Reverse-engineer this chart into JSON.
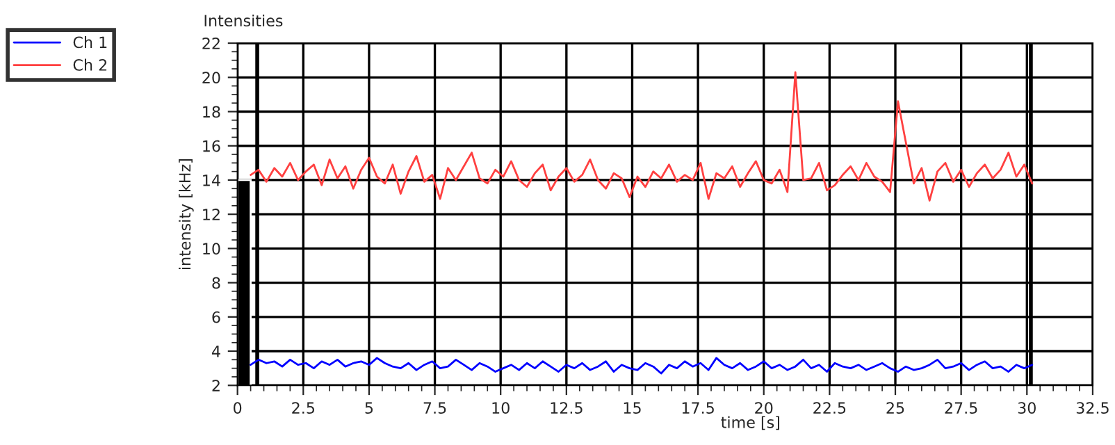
{
  "chart_data": {
    "type": "line",
    "title": "Intensities",
    "xlabel": "time [s]",
    "ylabel": "intensity [kHz]",
    "x": [
      0.5,
      0.8,
      1.1,
      1.4,
      1.7,
      2.0,
      2.3,
      2.6,
      2.9,
      3.2,
      3.5,
      3.8,
      4.1,
      4.4,
      4.7,
      5.0,
      5.3,
      5.6,
      5.9,
      6.2,
      6.5,
      6.8,
      7.1,
      7.4,
      7.7,
      8.0,
      8.3,
      8.6,
      8.9,
      9.2,
      9.5,
      9.8,
      10.1,
      10.4,
      10.7,
      11.0,
      11.3,
      11.6,
      11.9,
      12.2,
      12.5,
      12.8,
      13.1,
      13.4,
      13.7,
      14.0,
      14.3,
      14.6,
      14.9,
      15.2,
      15.5,
      15.8,
      16.1,
      16.4,
      16.7,
      17.0,
      17.3,
      17.6,
      17.9,
      18.2,
      18.5,
      18.8,
      19.1,
      19.4,
      19.7,
      20.0,
      20.3,
      20.6,
      20.9,
      21.2,
      21.5,
      21.8,
      22.1,
      22.4,
      22.7,
      23.0,
      23.3,
      23.6,
      23.9,
      24.2,
      24.5,
      24.8,
      25.1,
      25.4,
      25.7,
      26.0,
      26.3,
      26.6,
      26.9,
      27.2,
      27.5,
      27.8,
      28.1,
      28.4,
      28.7,
      29.0,
      29.3,
      29.6,
      29.9,
      30.2
    ],
    "series": [
      {
        "name": "Ch 1",
        "color": "#0000ff",
        "values": [
          3.2,
          3.5,
          3.3,
          3.4,
          3.1,
          3.5,
          3.2,
          3.3,
          3.0,
          3.4,
          3.2,
          3.5,
          3.1,
          3.3,
          3.4,
          3.2,
          3.6,
          3.3,
          3.1,
          3.0,
          3.3,
          2.9,
          3.2,
          3.4,
          3.0,
          3.1,
          3.5,
          3.2,
          2.9,
          3.3,
          3.1,
          2.8,
          3.0,
          3.2,
          2.9,
          3.3,
          3.0,
          3.4,
          3.1,
          2.8,
          3.2,
          3.0,
          3.3,
          2.9,
          3.1,
          3.4,
          2.8,
          3.2,
          3.0,
          2.9,
          3.3,
          3.1,
          2.7,
          3.2,
          3.0,
          3.4,
          3.1,
          3.3,
          2.9,
          3.6,
          3.2,
          3.0,
          3.3,
          2.9,
          3.1,
          3.4,
          3.0,
          3.2,
          2.9,
          3.1,
          3.5,
          3.0,
          3.2,
          2.8,
          3.3,
          3.1,
          3.0,
          3.2,
          2.9,
          3.1,
          3.3,
          3.0,
          2.8,
          3.1,
          2.9,
          3.0,
          3.2,
          3.5,
          3.0,
          3.1,
          3.3,
          2.9,
          3.2,
          3.4,
          3.0,
          3.1,
          2.8,
          3.2,
          3.0,
          3.2
        ]
      },
      {
        "name": "Ch 2",
        "color": "#ff4040",
        "values": [
          14.3,
          14.6,
          13.9,
          14.7,
          14.2,
          15.0,
          14.0,
          14.5,
          14.9,
          13.7,
          15.2,
          14.1,
          14.8,
          13.5,
          14.6,
          15.3,
          14.2,
          13.8,
          14.9,
          13.2,
          14.5,
          15.4,
          13.9,
          14.3,
          12.9,
          14.7,
          14.0,
          14.8,
          15.6,
          14.1,
          13.8,
          14.6,
          14.2,
          15.1,
          14.0,
          13.6,
          14.4,
          14.9,
          13.4,
          14.2,
          14.7,
          13.9,
          14.3,
          15.2,
          14.0,
          13.5,
          14.4,
          14.1,
          13.0,
          14.2,
          13.6,
          14.5,
          14.1,
          14.9,
          13.9,
          14.3,
          14.0,
          15.0,
          12.9,
          14.4,
          14.1,
          14.8,
          13.6,
          14.4,
          15.1,
          14.0,
          13.8,
          14.6,
          13.3,
          20.3,
          14.0,
          14.1,
          15.0,
          13.4,
          13.7,
          14.3,
          14.8,
          14.0,
          15.0,
          14.2,
          13.9,
          13.3,
          18.6,
          16.2,
          13.8,
          14.7,
          12.8,
          14.5,
          15.0,
          13.9,
          14.6,
          13.6,
          14.4,
          14.9,
          14.1,
          14.6,
          15.6,
          14.2,
          14.9,
          13.8
        ]
      },
      {
        "type": "bar",
        "color": "#000000",
        "x": [
          0.25
        ],
        "values": [
          14
        ]
      }
    ],
    "ref_lines": [
      {
        "axis": "x",
        "value": 0.75,
        "color": "#000000"
      },
      {
        "axis": "x",
        "value": 30.15,
        "color": "#000000"
      }
    ],
    "xlim": [
      0,
      32.5
    ],
    "xticks": [
      0,
      2.5,
      5,
      7.5,
      10,
      12.5,
      15,
      17.5,
      20,
      22.5,
      25,
      27.5,
      30,
      32.5
    ],
    "ylim": [
      2,
      22
    ],
    "yticks": [
      2,
      4,
      6,
      8,
      10,
      12,
      14,
      16,
      18,
      20,
      22
    ],
    "grid": true,
    "legend": "left"
  }
}
